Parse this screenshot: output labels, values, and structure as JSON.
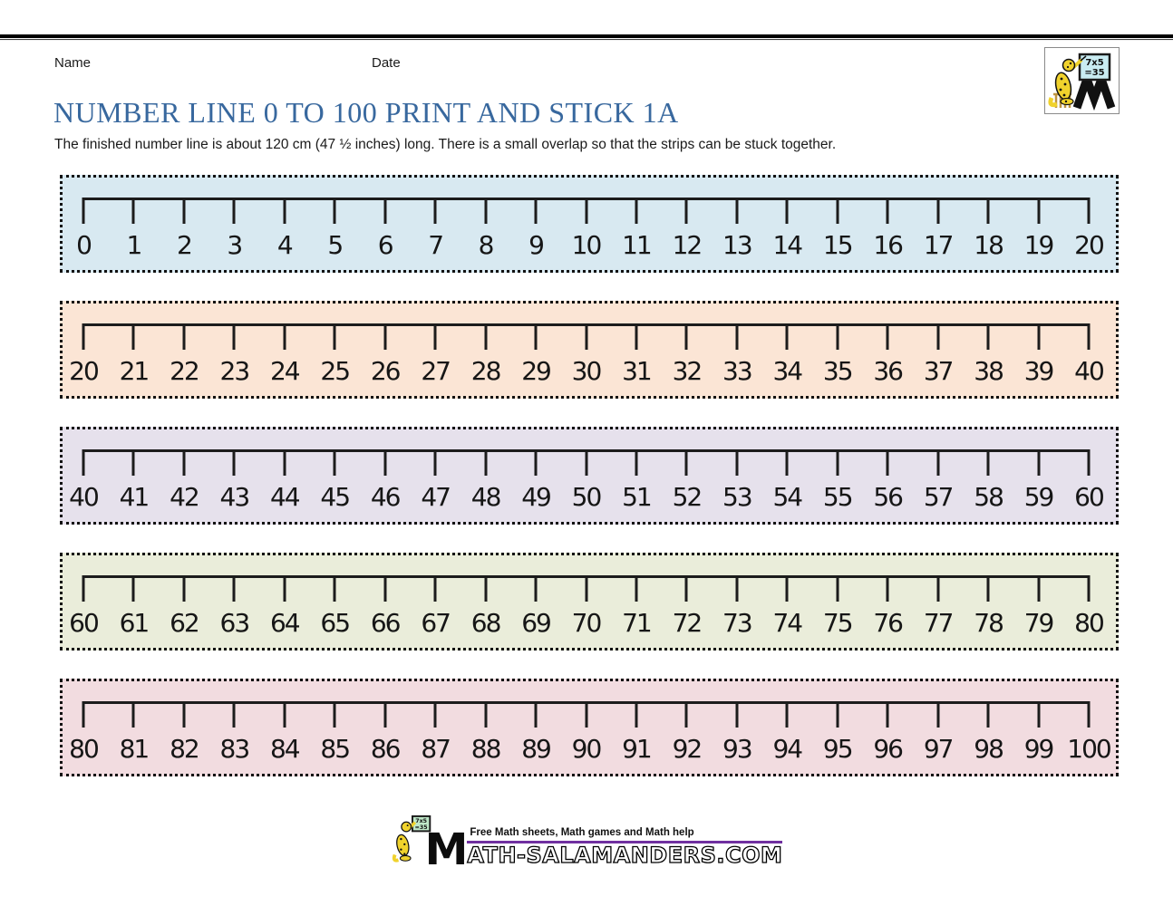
{
  "header": {
    "name_label": "Name",
    "date_label": "Date"
  },
  "title": "NUMBER LINE 0 TO 100 PRINT AND STICK 1A",
  "subtitle": "The finished number line is about 120 cm (47 ½ inches) long. There is a small overlap so that the strips can be stuck together.",
  "title_color": "#38689e",
  "logo": {
    "board_line1": "7x5",
    "board_line2": "=35"
  },
  "chart_data": {
    "type": "number-line-strips",
    "title": "NUMBER LINE 0 TO 100 PRINT AND STICK 1A",
    "min": 0,
    "max": 100,
    "step": 1,
    "ticks_per_strip": 21,
    "strips": [
      {
        "label": "0 to 20",
        "bg": "#d8e9f1",
        "values": [
          0,
          1,
          2,
          3,
          4,
          5,
          6,
          7,
          8,
          9,
          10,
          11,
          12,
          13,
          14,
          15,
          16,
          17,
          18,
          19,
          20
        ]
      },
      {
        "label": "20 to 40",
        "bg": "#fbe5d5",
        "values": [
          20,
          21,
          22,
          23,
          24,
          25,
          26,
          27,
          28,
          29,
          30,
          31,
          32,
          33,
          34,
          35,
          36,
          37,
          38,
          39,
          40
        ]
      },
      {
        "label": "40 to 60",
        "bg": "#e6e1ec",
        "values": [
          40,
          41,
          42,
          43,
          44,
          45,
          46,
          47,
          48,
          49,
          50,
          51,
          52,
          53,
          54,
          55,
          56,
          57,
          58,
          59,
          60
        ]
      },
      {
        "label": "60 to 80",
        "bg": "#eaedda",
        "values": [
          60,
          61,
          62,
          63,
          64,
          65,
          66,
          67,
          68,
          69,
          70,
          71,
          72,
          73,
          74,
          75,
          76,
          77,
          78,
          79,
          80
        ]
      },
      {
        "label": "80 to 100",
        "bg": "#f2dce0",
        "values": [
          80,
          81,
          82,
          83,
          84,
          85,
          86,
          87,
          88,
          89,
          90,
          91,
          92,
          93,
          94,
          95,
          96,
          97,
          98,
          99,
          100
        ]
      }
    ]
  },
  "footer": {
    "tagline": "Free Math sheets, Math games and Math help",
    "site_prefix": "M",
    "site_text": "ATH-SALAMANDERS.COM",
    "underline_color": "#7030a0"
  }
}
